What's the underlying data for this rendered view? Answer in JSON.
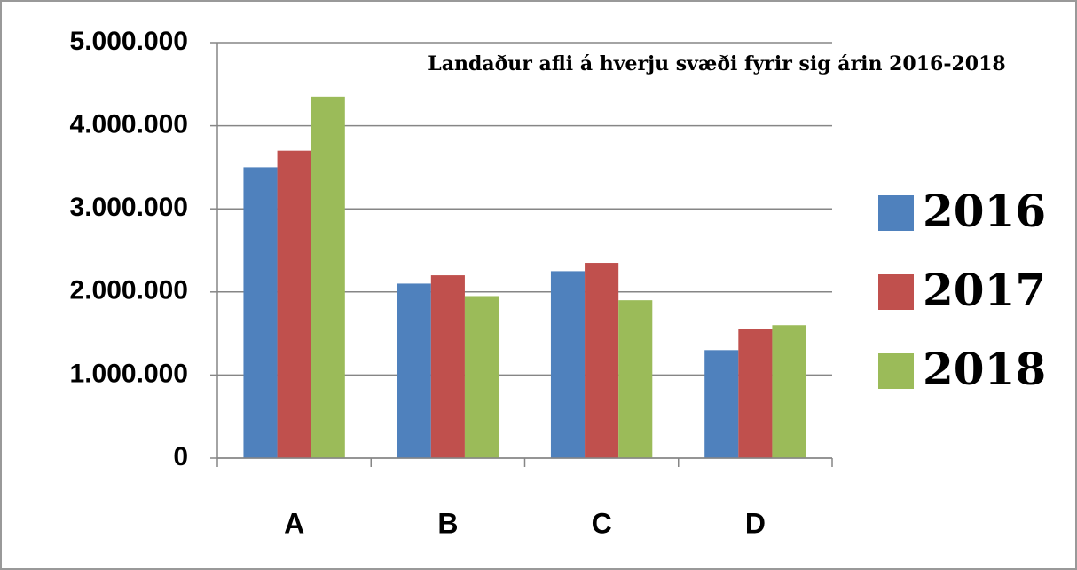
{
  "chart_data": {
    "type": "bar",
    "title": "Landaður afli á hverju svæði fyrir sig árin 2016-2018",
    "categories": [
      "A",
      "B",
      "C",
      "D"
    ],
    "series": [
      {
        "name": "2016",
        "color": "#4f81bd",
        "values": [
          3500000,
          2100000,
          2250000,
          1300000
        ]
      },
      {
        "name": "2017",
        "color": "#c0504d",
        "values": [
          3700000,
          2200000,
          2350000,
          1550000
        ]
      },
      {
        "name": "2018",
        "color": "#9bbb59",
        "values": [
          4350000,
          1950000,
          1900000,
          1600000
        ]
      }
    ],
    "ylim": [
      0,
      5000000
    ],
    "yticks": [
      0,
      {
        "value": 1000000,
        "label": "1.000.000"
      },
      {
        "value": 2000000,
        "label": "2.000.000"
      },
      {
        "value": 3000000,
        "label": "3.000.000"
      },
      {
        "value": 4000000,
        "label": "4.000.000"
      },
      {
        "value": 5000000,
        "label": "5.000.000"
      }
    ],
    "grid": true,
    "legend": "right"
  }
}
